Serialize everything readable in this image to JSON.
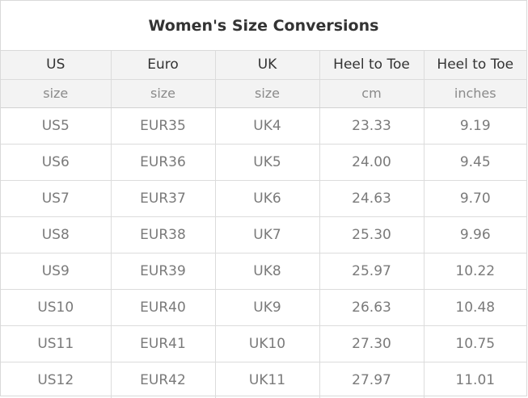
{
  "title": "Women's Size Conversions",
  "headers": [
    "US",
    "Euro",
    "UK",
    "Heel to Toe",
    "Heel to Toe"
  ],
  "subheaders": [
    "size",
    "size",
    "size",
    "cm",
    "inches"
  ],
  "rows": [
    [
      "US5",
      "EUR35",
      "UK4",
      "23.33",
      "9.19"
    ],
    [
      "US6",
      "EUR36",
      "UK5",
      "24.00",
      "9.45"
    ],
    [
      "US7",
      "EUR37",
      "UK6",
      "24.63",
      "9.70"
    ],
    [
      "US8",
      "EUR38",
      "UK7",
      "25.30",
      "9.96"
    ],
    [
      "US9",
      "EUR39",
      "UK8",
      "25.97",
      "10.22"
    ],
    [
      "US10",
      "EUR40",
      "UK9",
      "26.63",
      "10.48"
    ],
    [
      "US11",
      "EUR41",
      "UK10",
      "27.30",
      "10.75"
    ],
    [
      "US12",
      "EUR42",
      "UK11",
      "27.97",
      "11.01"
    ]
  ]
}
